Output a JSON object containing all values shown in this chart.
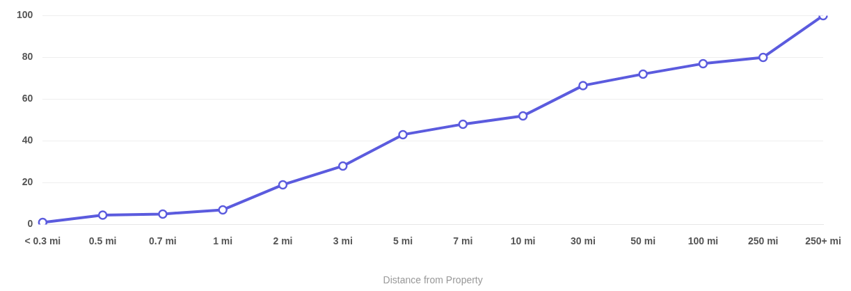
{
  "chart_data": {
    "type": "line",
    "xlabel": "Distance from Property",
    "categories": [
      "< 0.3 mi",
      "0.5 mi",
      "0.7 mi",
      "1 mi",
      "2 mi",
      "3 mi",
      "5 mi",
      "7 mi",
      "10 mi",
      "30 mi",
      "50 mi",
      "100 mi",
      "250 mi",
      "250+ mi"
    ],
    "series": [
      {
        "color": "#5b5bde",
        "values": [
          1,
          4.5,
          5,
          7,
          19,
          28,
          43,
          48,
          52,
          66.5,
          72,
          77,
          80,
          100
        ]
      }
    ],
    "ylim": [
      0,
      100
    ],
    "yticks": [
      0,
      20,
      40,
      60,
      80,
      100
    ],
    "grid": "y",
    "legend": false,
    "marker": "circle",
    "line_style": "solid"
  }
}
